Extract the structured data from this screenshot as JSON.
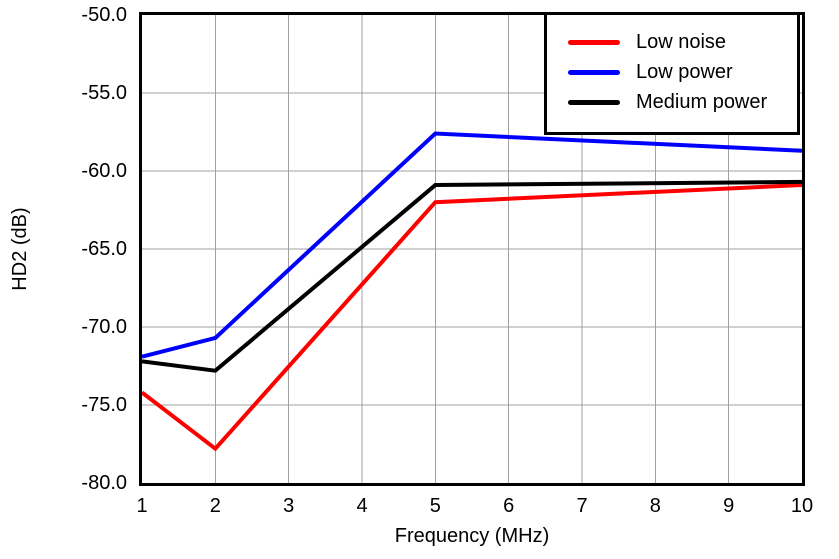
{
  "chart_data": {
    "type": "line",
    "title": "",
    "xlabel": "Frequency (MHz)",
    "ylabel": "HD2 (dB)",
    "x": [
      1,
      2,
      5,
      10
    ],
    "series": [
      {
        "name": "Low noise",
        "color": "#ff0000",
        "values": [
          -74.2,
          -77.8,
          -62.0,
          -60.9
        ]
      },
      {
        "name": "Low power",
        "color": "#0000ff",
        "values": [
          -71.9,
          -70.7,
          -57.6,
          -58.7
        ]
      },
      {
        "name": "Medium power",
        "color": "#000000",
        "values": [
          -72.2,
          -72.8,
          -60.9,
          -60.7
        ]
      }
    ],
    "xlim": [
      1,
      10
    ],
    "ylim": [
      -80,
      -50
    ],
    "x_ticks": [
      1,
      2,
      3,
      4,
      5,
      6,
      7,
      8,
      9,
      10
    ],
    "x_tick_labels": [
      "1",
      "2",
      "3",
      "4",
      "5",
      "6",
      "7",
      "8",
      "9",
      "10"
    ],
    "y_ticks": [
      -50,
      -55,
      -60,
      -65,
      -70,
      -75,
      -80
    ],
    "y_tick_labels": [
      "-50.0",
      "-55.0",
      "-60.0",
      "-65.0",
      "-70.0",
      "-75.0",
      "-80.0"
    ],
    "grid": true,
    "grid_color": "#a0a0a0",
    "axis_color": "#000000",
    "background_color": "#ffffff",
    "line_width": 4,
    "legend": {
      "position": "top-right",
      "entries": [
        "Low noise",
        "Low power",
        "Medium power"
      ]
    }
  }
}
